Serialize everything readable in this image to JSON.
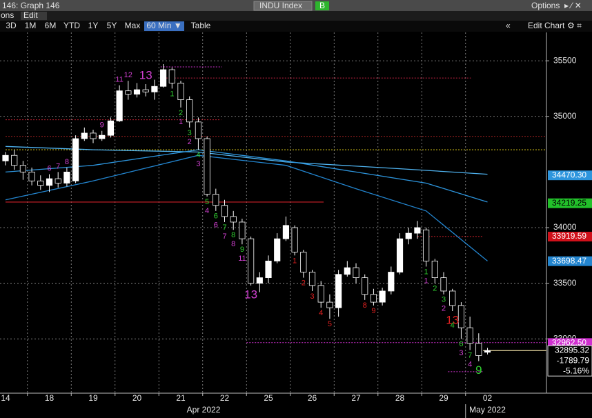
{
  "header": {
    "title": "146: Graph 146",
    "ticker": "INDU Index",
    "source_button": "B",
    "options": "Options",
    "menu_left": "ons",
    "menu_edit": "Edit",
    "ranges": [
      "3D",
      "1M",
      "6M",
      "YTD",
      "1Y",
      "5Y",
      "Max",
      "60 Min ▼",
      "Table"
    ],
    "edit_chart": "Edit Chart"
  },
  "chart_data": {
    "type": "candlestick",
    "open": [
      34600,
      34650,
      34560,
      34500,
      34420,
      34380,
      34440,
      34400,
      34420,
      34800,
      34850,
      34800,
      34830,
      34960,
      35230,
      35200,
      35240,
      35220,
      35270,
      35420,
      35300,
      35150,
      34950,
      34800,
      34300,
      34200,
      34100,
      34050,
      33900,
      33500,
      33550,
      33700,
      33900,
      34000,
      33780,
      33600,
      33480,
      33330,
      33280,
      33580,
      33640,
      33550,
      33400,
      33330,
      33430,
      33600,
      33900,
      33950,
      33980,
      33700,
      33550,
      33430,
      33300,
      33100,
      32960,
      32880
    ],
    "high": [
      34680,
      34700,
      34600,
      34540,
      34470,
      34480,
      34500,
      34540,
      34830,
      34900,
      34880,
      34870,
      34990,
      35280,
      35320,
      35300,
      35290,
      35330,
      35470,
      35440,
      35320,
      35180,
      34990,
      34820,
      34350,
      34250,
      34150,
      34080,
      33920,
      33600,
      33750,
      33950,
      34100,
      34020,
      33800,
      33620,
      33520,
      33400,
      33620,
      33700,
      33680,
      33580,
      33450,
      33460,
      33650,
      33950,
      34000,
      34060,
      34000,
      33720,
      33600,
      33450,
      33330,
      33200,
      33050,
      32920
    ],
    "low": [
      34560,
      34520,
      34430,
      34380,
      34340,
      34320,
      34360,
      34370,
      34400,
      34780,
      34760,
      34780,
      34810,
      34950,
      35150,
      35170,
      35180,
      35150,
      35260,
      35250,
      35080,
      34900,
      34700,
      34280,
      34150,
      34050,
      33980,
      33850,
      33480,
      33420,
      33500,
      33680,
      33880,
      33750,
      33550,
      33430,
      33280,
      33180,
      33200,
      33560,
      33500,
      33350,
      33300,
      33300,
      33400,
      33580,
      33850,
      33900,
      33650,
      33500,
      33400,
      33250,
      33000,
      32900,
      32800,
      32860
    ],
    "close": [
      34650,
      34560,
      34500,
      34420,
      34380,
      34440,
      34400,
      34500,
      34800,
      34850,
      34800,
      34830,
      34960,
      35230,
      35200,
      35240,
      35220,
      35270,
      35420,
      35300,
      35150,
      34950,
      34800,
      34300,
      34200,
      34100,
      34050,
      33900,
      33500,
      33550,
      33700,
      33900,
      34020,
      33780,
      33600,
      33480,
      33330,
      33280,
      33580,
      33640,
      33550,
      33400,
      33330,
      33430,
      33600,
      33900,
      33950,
      34000,
      33700,
      33550,
      33430,
      33300,
      33100,
      32960,
      32850,
      32895
    ],
    "xlim": [
      -0.63,
      61.73
    ],
    "ylim": [
      32512,
      35755
    ],
    "xticks": [
      {
        "value": 0,
        "label": "14"
      },
      {
        "value": 5,
        "label": "18"
      },
      {
        "value": 10,
        "label": "19"
      },
      {
        "value": 15,
        "label": "20"
      },
      {
        "value": 20,
        "label": "21"
      },
      {
        "value": 25,
        "label": "22"
      },
      {
        "value": 30,
        "label": "25"
      },
      {
        "value": 35,
        "label": "26"
      },
      {
        "value": 40,
        "label": "27"
      },
      {
        "value": 45,
        "label": "28"
      },
      {
        "value": 50,
        "label": "29"
      },
      {
        "value": 55,
        "label": "02"
      }
    ],
    "months": [
      {
        "value": 22.6,
        "label": "Apr 2022"
      },
      {
        "value": 55,
        "label": "May 2022"
      }
    ],
    "yticks": [
      33000,
      33500,
      34000,
      35000,
      35500
    ],
    "grid": true,
    "series": [
      {
        "color": "#4fb3f0",
        "x": [
          0,
          10,
          22,
          32,
          45,
          55
        ],
        "values": [
          34730,
          34700,
          34680,
          34590,
          34530,
          34480
        ]
      },
      {
        "color": "#2d95dd",
        "x": [
          0,
          10,
          22,
          32,
          40,
          48,
          55
        ],
        "values": [
          34500,
          34560,
          34700,
          34600,
          34500,
          34400,
          34230
        ]
      },
      {
        "color": "#2385cf",
        "x": [
          0,
          10,
          22,
          32,
          40,
          48,
          55
        ],
        "values": [
          34250,
          34420,
          34650,
          34560,
          34350,
          34150,
          33700
        ]
      }
    ],
    "levels": [
      {
        "value": 34230,
        "from": 0,
        "to": 36.3,
        "color": "#d0202a",
        "dashed": false
      },
      {
        "value": 34820,
        "from": 0,
        "to": 61.73,
        "color": "#a02020",
        "dashed": true
      },
      {
        "value": 34700,
        "from": 0,
        "to": 61.73,
        "color": "#e6d21a",
        "dashed": true
      },
      {
        "value": 34970,
        "from": 0,
        "to": 24.6,
        "color": "#c02030",
        "dashed": true
      },
      {
        "value": 35445,
        "from": 17.7,
        "to": 24.7,
        "color": "#d030d0",
        "dashed": true
      },
      {
        "value": 35345,
        "from": 17.7,
        "to": 53.1,
        "color": "#c02040",
        "dashed": true
      },
      {
        "value": 33920,
        "from": 47,
        "to": 54.5,
        "color": "#d0202a",
        "dashed": true
      },
      {
        "value": 32966,
        "from": 27.5,
        "to": 61.73,
        "color": "#d030d0",
        "dashed": true
      },
      {
        "value": 32705,
        "from": 50.5,
        "to": 54.5,
        "color": "#d030d0",
        "dashed": true
      },
      {
        "value": 32895,
        "from": 54.5,
        "to": 61.73,
        "color": "#e8d8a0",
        "dashed": false
      }
    ],
    "price_labels": [
      {
        "value": 34470.3,
        "label": "34470.30",
        "color": "#2d95dd",
        "text_color": "#ffffff"
      },
      {
        "value": 34219.25,
        "label": "34219.25",
        "color": "#22c02a",
        "text_color": "#000000"
      },
      {
        "value": 33919.59,
        "label": "33919.59",
        "color": "#d0101a",
        "text_color": "#ffffff"
      },
      {
        "value": 33698.47,
        "label": "33698.47",
        "color": "#2385cf",
        "text_color": "#ffffff"
      },
      {
        "value": 32962.5,
        "label": "32962.50",
        "color": "#d030d0",
        "text_color": "#ffffff"
      }
    ],
    "last": {
      "value": 32895.32,
      "label": "32895.32",
      "change": "-1789.79",
      "pct": "-5.16%"
    },
    "counts": [
      {
        "bar": 5,
        "text": "6",
        "color": "#d040d0",
        "side": "above",
        "big": false
      },
      {
        "bar": 6,
        "text": "7",
        "color": "#d040d0",
        "side": "above",
        "big": false
      },
      {
        "bar": 7,
        "text": "8",
        "color": "#d040d0",
        "side": "above",
        "big": false
      },
      {
        "bar": 11,
        "text": "9",
        "color": "#d040d0",
        "side": "above",
        "big": false
      },
      {
        "bar": 13,
        "text": "11",
        "color": "#d040d0",
        "side": "above",
        "big": false
      },
      {
        "bar": 14,
        "text": "12",
        "color": "#d040d0",
        "side": "above",
        "big": false
      },
      {
        "bar": 16,
        "text": "13",
        "color": "#d040d0",
        "side": "above",
        "big": true
      },
      {
        "bar": 19,
        "text": "1",
        "color": "#30d030",
        "side": "below",
        "big": false
      },
      {
        "bar": 20,
        "text": "2",
        "color": "#30d030",
        "side": "below",
        "big": false
      },
      {
        "bar": 20,
        "text": "1",
        "color": "#d040d0",
        "side": "below",
        "big": false
      },
      {
        "bar": 21,
        "text": "3",
        "color": "#30d030",
        "side": "below",
        "big": false
      },
      {
        "bar": 21,
        "text": "2",
        "color": "#d040d0",
        "side": "below",
        "big": false
      },
      {
        "bar": 22,
        "text": "4",
        "color": "#30d030",
        "side": "below",
        "big": false
      },
      {
        "bar": 22,
        "text": "3",
        "color": "#d040d0",
        "side": "below",
        "big": false
      },
      {
        "bar": 23,
        "text": "5",
        "color": "#30d030",
        "side": "below",
        "big": false
      },
      {
        "bar": 23,
        "text": "4",
        "color": "#d040d0",
        "side": "below",
        "big": false
      },
      {
        "bar": 24,
        "text": "6",
        "color": "#30d030",
        "side": "below",
        "big": false
      },
      {
        "bar": 24,
        "text": "6",
        "color": "#d040d0",
        "side": "below",
        "big": false
      },
      {
        "bar": 25,
        "text": "7",
        "color": "#30d030",
        "side": "below",
        "big": false
      },
      {
        "bar": 25,
        "text": "7",
        "color": "#d040d0",
        "side": "below",
        "big": false
      },
      {
        "bar": 26,
        "text": "8",
        "color": "#30d030",
        "side": "below",
        "big": false
      },
      {
        "bar": 26,
        "text": "8",
        "color": "#d040d0",
        "side": "below",
        "big": false
      },
      {
        "bar": 27,
        "text": "9",
        "color": "#30d030",
        "side": "below",
        "big": false
      },
      {
        "bar": 27,
        "text": "11",
        "color": "#d040d0",
        "side": "below",
        "big": false
      },
      {
        "bar": 28,
        "text": "13",
        "color": "#d040d0",
        "side": "below",
        "big": true
      },
      {
        "bar": 33,
        "text": "1",
        "color": "#e02020",
        "side": "below",
        "big": false
      },
      {
        "bar": 34,
        "text": "2",
        "color": "#e02020",
        "side": "below",
        "big": false
      },
      {
        "bar": 35,
        "text": "3",
        "color": "#e02020",
        "side": "below",
        "big": false
      },
      {
        "bar": 36,
        "text": "4",
        "color": "#e02020",
        "side": "below",
        "big": false
      },
      {
        "bar": 37,
        "text": "5",
        "color": "#e02020",
        "side": "below",
        "big": false
      },
      {
        "bar": 41,
        "text": "8",
        "color": "#e02020",
        "side": "below",
        "big": false
      },
      {
        "bar": 42,
        "text": "9",
        "color": "#e02020",
        "side": "below",
        "big": false
      },
      {
        "bar": 48,
        "text": "1",
        "color": "#30d030",
        "side": "below",
        "big": false
      },
      {
        "bar": 48,
        "text": "1",
        "color": "#d040d0",
        "side": "below",
        "big": false
      },
      {
        "bar": 49,
        "text": "2",
        "color": "#30d030",
        "side": "below",
        "big": false
      },
      {
        "bar": 50,
        "text": "3",
        "color": "#30d030",
        "side": "below",
        "big": false
      },
      {
        "bar": 50,
        "text": "2",
        "color": "#d040d0",
        "side": "below",
        "big": false
      },
      {
        "bar": 51,
        "text": "13",
        "color": "#e02020",
        "side": "below",
        "big": true
      },
      {
        "bar": 51,
        "text": "4",
        "color": "#30d030",
        "side": "below",
        "big": false
      },
      {
        "bar": 52,
        "text": "6",
        "color": "#30d030",
        "side": "below",
        "big": false
      },
      {
        "bar": 52,
        "text": "3",
        "color": "#d040d0",
        "side": "below",
        "big": false
      },
      {
        "bar": 53,
        "text": "7",
        "color": "#30d030",
        "side": "below",
        "big": false
      },
      {
        "bar": 53,
        "text": "4",
        "color": "#d040d0",
        "side": "below",
        "big": false
      },
      {
        "bar": 54,
        "text": "9",
        "color": "#30d030",
        "side": "below",
        "big": true
      }
    ]
  }
}
